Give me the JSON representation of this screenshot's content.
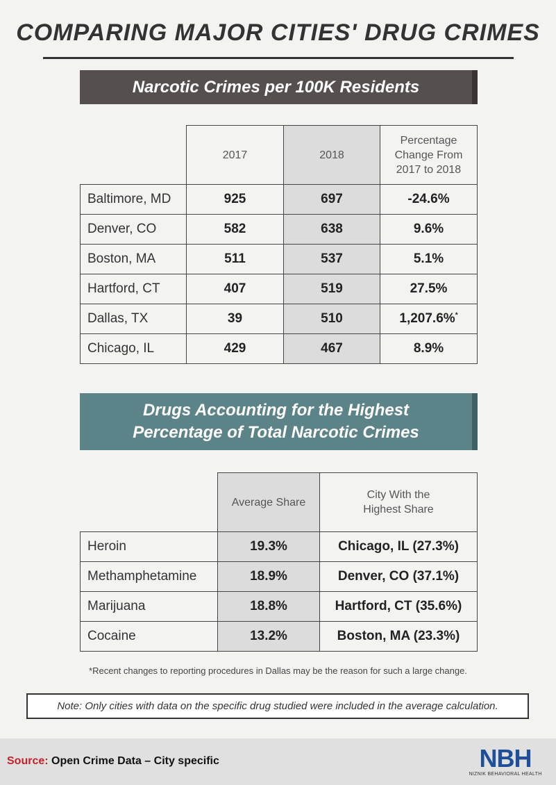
{
  "title": "COMPARING MAJOR CITIES' DRUG CRIMES",
  "table1": {
    "heading": "Narcotic Crimes per 100K Residents",
    "columns": [
      "2017",
      "2018",
      "Percentage Change From 2017 to 2018"
    ],
    "rows": [
      {
        "city": "Baltimore, MD",
        "y2017": "925",
        "y2018": "697",
        "change": "-24.6%"
      },
      {
        "city": "Denver, CO",
        "y2017": "582",
        "y2018": "638",
        "change": "9.6%"
      },
      {
        "city": "Boston, MA",
        "y2017": "511",
        "y2018": "537",
        "change": "5.1%"
      },
      {
        "city": "Hartford, CT",
        "y2017": "407",
        "y2018": "519",
        "change": "27.5%"
      },
      {
        "city": "Dallas, TX",
        "y2017": "39",
        "y2018": "510",
        "change": "1,207.6%",
        "mark": "*"
      },
      {
        "city": "Chicago, IL",
        "y2017": "429",
        "y2018": "467",
        "change": "8.9%"
      }
    ]
  },
  "table2": {
    "heading_line1": "Drugs Accounting for the Highest",
    "heading_line2": "Percentage of Total Narcotic Crimes",
    "columns": [
      "Average Share",
      "City With the Highest Share"
    ],
    "rows": [
      {
        "drug": "Heroin",
        "avg": "19.3%",
        "top": "Chicago, IL (27.3%)"
      },
      {
        "drug": "Methamphetamine",
        "avg": "18.9%",
        "top": "Denver, CO (37.1%)"
      },
      {
        "drug": "Marijuana",
        "avg": "18.8%",
        "top": "Hartford, CT (35.6%)"
      },
      {
        "drug": "Cocaine",
        "avg": "13.2%",
        "top": "Boston, MA (23.3%)"
      }
    ]
  },
  "footnote": "*Recent changes to reporting procedures in Dallas may be the reason for such a large change.",
  "note": "Note: Only cities with data on the specific drug studied were included in the average calculation.",
  "source": {
    "label": "Source:",
    "text": "Open Crime Data – City specific"
  },
  "logo": {
    "mark": "NBH",
    "name": "NIZNIK BEHAVIORAL HEALTH"
  },
  "colors": {
    "banner1": "#55504f",
    "banner2": "#5c8488",
    "source_label": "#c8202a",
    "logo": "#1f4f99"
  }
}
